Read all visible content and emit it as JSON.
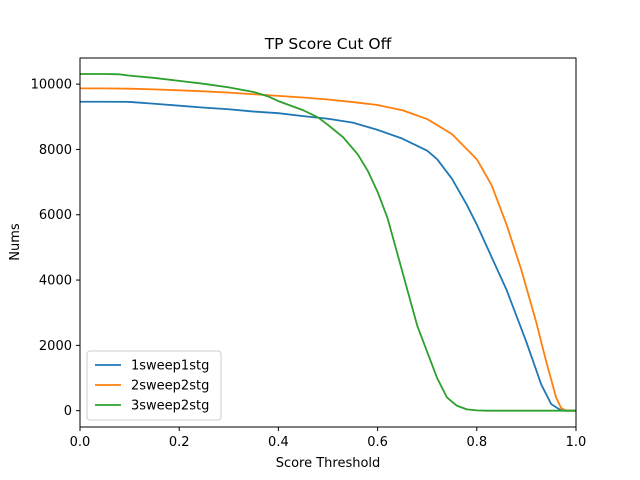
{
  "chart_data": {
    "type": "line",
    "title": "TP Score Cut Off",
    "xlabel": "Score Threshold",
    "ylabel": "Nums",
    "xlim": [
      0.0,
      1.0
    ],
    "ylim": [
      -500,
      10800
    ],
    "xticks": [
      0.0,
      0.2,
      0.4,
      0.6,
      0.8,
      1.0
    ],
    "xtick_labels": [
      "0.0",
      "0.2",
      "0.4",
      "0.6",
      "0.8",
      "1.0"
    ],
    "yticks": [
      0,
      2000,
      4000,
      6000,
      8000,
      10000
    ],
    "ytick_labels": [
      "0",
      "2000",
      "4000",
      "6000",
      "8000",
      "10000"
    ],
    "grid": false,
    "legend": "lower-left",
    "series": [
      {
        "name": "1sweep1stg",
        "color": "#1f77b4",
        "x": [
          0.0,
          0.05,
          0.1,
          0.15,
          0.2,
          0.25,
          0.3,
          0.35,
          0.4,
          0.45,
          0.5,
          0.55,
          0.6,
          0.65,
          0.7,
          0.72,
          0.75,
          0.78,
          0.8,
          0.83,
          0.86,
          0.9,
          0.93,
          0.95,
          0.97,
          0.98,
          1.0
        ],
        "y": [
          9460,
          9460,
          9455,
          9400,
          9340,
          9280,
          9230,
          9160,
          9110,
          9020,
          8940,
          8820,
          8600,
          8330,
          7960,
          7700,
          7100,
          6300,
          5700,
          4700,
          3700,
          2100,
          800,
          200,
          10,
          0,
          0
        ]
      },
      {
        "name": "2sweep2stg",
        "color": "#ff7f0e",
        "x": [
          0.0,
          0.05,
          0.1,
          0.15,
          0.2,
          0.25,
          0.3,
          0.35,
          0.4,
          0.45,
          0.5,
          0.55,
          0.6,
          0.65,
          0.7,
          0.75,
          0.8,
          0.83,
          0.86,
          0.89,
          0.92,
          0.94,
          0.96,
          0.97,
          0.98,
          1.0
        ],
        "y": [
          9870,
          9870,
          9860,
          9840,
          9810,
          9780,
          9740,
          9690,
          9640,
          9590,
          9530,
          9450,
          9360,
          9200,
          8930,
          8470,
          7700,
          6900,
          5700,
          4300,
          2700,
          1500,
          400,
          80,
          0,
          0
        ]
      },
      {
        "name": "3sweep2stg",
        "color": "#2ca02c",
        "x": [
          0.0,
          0.05,
          0.08,
          0.1,
          0.15,
          0.2,
          0.25,
          0.3,
          0.35,
          0.38,
          0.4,
          0.45,
          0.48,
          0.5,
          0.53,
          0.56,
          0.58,
          0.6,
          0.62,
          0.64,
          0.66,
          0.68,
          0.7,
          0.72,
          0.74,
          0.76,
          0.78,
          0.8,
          0.82,
          0.85,
          0.9,
          1.0
        ],
        "y": [
          10310,
          10310,
          10300,
          10260,
          10190,
          10100,
          10010,
          9900,
          9760,
          9620,
          9480,
          9200,
          8980,
          8750,
          8380,
          7850,
          7350,
          6700,
          5900,
          4800,
          3700,
          2600,
          1800,
          1000,
          400,
          150,
          40,
          10,
          0,
          0,
          0,
          0
        ]
      }
    ]
  }
}
